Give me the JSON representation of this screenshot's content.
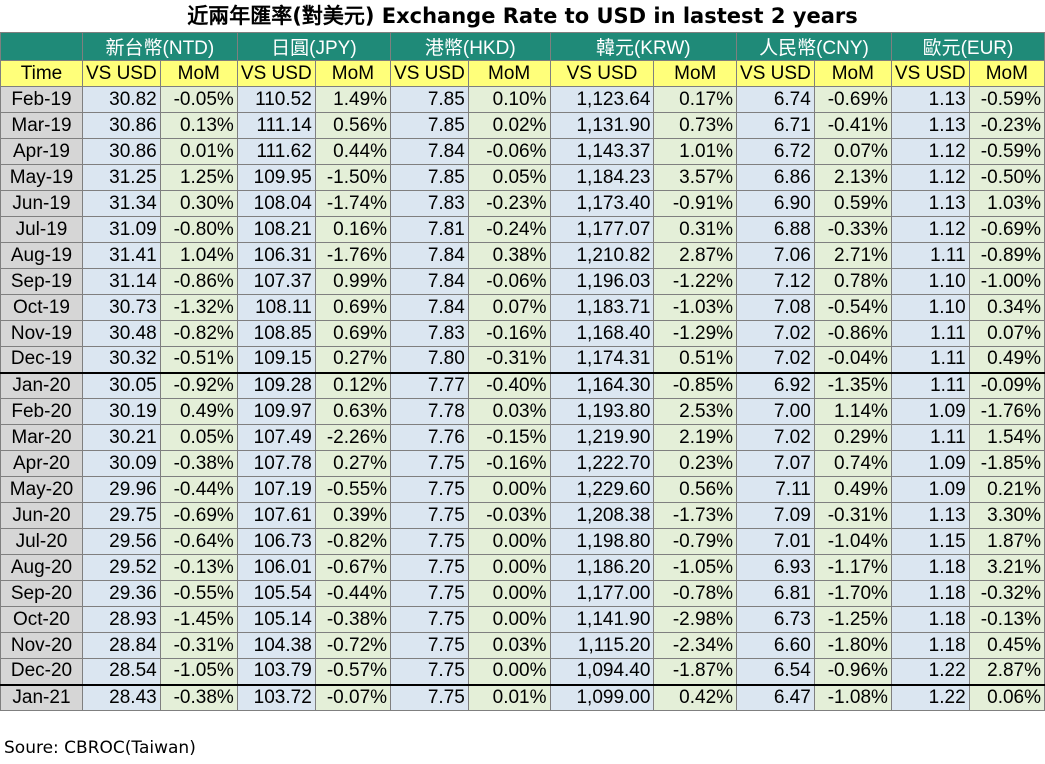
{
  "title": "近兩年匯率(對美元) Exchange Rate to USD in lastest 2 years",
  "source": "Soure: CBROC(Taiwan)",
  "currencies": [
    {
      "label": "新台幣(NTD)"
    },
    {
      "label": "日圓(JPY)"
    },
    {
      "label": "港幣(HKD)"
    },
    {
      "label": "韓元(KRW)"
    },
    {
      "label": "人民幣(CNY)"
    },
    {
      "label": "歐元(EUR)"
    }
  ],
  "subheaders": {
    "time": "Time",
    "vs": "VS USD",
    "mom": "MoM"
  },
  "colors": {
    "header_teal": "#1f8a78",
    "header_yellow": "#ffff7a",
    "month_gray": "#d6d6d6",
    "vs_blue": "#dbe6f1",
    "mom_green": "#e4efd8"
  },
  "rows": [
    {
      "month": "Feb-19",
      "v": [
        "30.82",
        "-0.05%",
        "110.52",
        "1.49%",
        "7.85",
        "0.10%",
        "1,123.64",
        "0.17%",
        "6.74",
        "-0.69%",
        "1.13",
        "-0.59%"
      ]
    },
    {
      "month": "Mar-19",
      "v": [
        "30.86",
        "0.13%",
        "111.14",
        "0.56%",
        "7.85",
        "0.02%",
        "1,131.90",
        "0.73%",
        "6.71",
        "-0.41%",
        "1.13",
        "-0.23%"
      ]
    },
    {
      "month": "Apr-19",
      "v": [
        "30.86",
        "0.01%",
        "111.62",
        "0.44%",
        "7.84",
        "-0.06%",
        "1,143.37",
        "1.01%",
        "6.72",
        "0.07%",
        "1.12",
        "-0.59%"
      ]
    },
    {
      "month": "May-19",
      "v": [
        "31.25",
        "1.25%",
        "109.95",
        "-1.50%",
        "7.85",
        "0.05%",
        "1,184.23",
        "3.57%",
        "6.86",
        "2.13%",
        "1.12",
        "-0.50%"
      ]
    },
    {
      "month": "Jun-19",
      "v": [
        "31.34",
        "0.30%",
        "108.04",
        "-1.74%",
        "7.83",
        "-0.23%",
        "1,173.40",
        "-0.91%",
        "6.90",
        "0.59%",
        "1.13",
        "1.03%"
      ]
    },
    {
      "month": "Jul-19",
      "v": [
        "31.09",
        "-0.80%",
        "108.21",
        "0.16%",
        "7.81",
        "-0.24%",
        "1,177.07",
        "0.31%",
        "6.88",
        "-0.33%",
        "1.12",
        "-0.69%"
      ]
    },
    {
      "month": "Aug-19",
      "v": [
        "31.41",
        "1.04%",
        "106.31",
        "-1.76%",
        "7.84",
        "0.38%",
        "1,210.82",
        "2.87%",
        "7.06",
        "2.71%",
        "1.11",
        "-0.89%"
      ]
    },
    {
      "month": "Sep-19",
      "v": [
        "31.14",
        "-0.86%",
        "107.37",
        "0.99%",
        "7.84",
        "-0.06%",
        "1,196.03",
        "-1.22%",
        "7.12",
        "0.78%",
        "1.10",
        "-1.00%"
      ]
    },
    {
      "month": "Oct-19",
      "v": [
        "30.73",
        "-1.32%",
        "108.11",
        "0.69%",
        "7.84",
        "0.07%",
        "1,183.71",
        "-1.03%",
        "7.08",
        "-0.54%",
        "1.10",
        "0.34%"
      ]
    },
    {
      "month": "Nov-19",
      "v": [
        "30.48",
        "-0.82%",
        "108.85",
        "0.69%",
        "7.83",
        "-0.16%",
        "1,168.40",
        "-1.29%",
        "7.02",
        "-0.86%",
        "1.11",
        "0.07%"
      ]
    },
    {
      "month": "Dec-19",
      "v": [
        "30.32",
        "-0.51%",
        "109.15",
        "0.27%",
        "7.80",
        "-0.31%",
        "1,174.31",
        "0.51%",
        "7.02",
        "-0.04%",
        "1.11",
        "0.49%"
      ]
    },
    {
      "month": "Jan-20",
      "v": [
        "30.05",
        "-0.92%",
        "109.28",
        "0.12%",
        "7.77",
        "-0.40%",
        "1,164.30",
        "-0.85%",
        "6.92",
        "-1.35%",
        "1.11",
        "-0.09%"
      ]
    },
    {
      "month": "Feb-20",
      "v": [
        "30.19",
        "0.49%",
        "109.97",
        "0.63%",
        "7.78",
        "0.03%",
        "1,193.80",
        "2.53%",
        "7.00",
        "1.14%",
        "1.09",
        "-1.76%"
      ]
    },
    {
      "month": "Mar-20",
      "v": [
        "30.21",
        "0.05%",
        "107.49",
        "-2.26%",
        "7.76",
        "-0.15%",
        "1,219.90",
        "2.19%",
        "7.02",
        "0.29%",
        "1.11",
        "1.54%"
      ]
    },
    {
      "month": "Apr-20",
      "v": [
        "30.09",
        "-0.38%",
        "107.78",
        "0.27%",
        "7.75",
        "-0.16%",
        "1,222.70",
        "0.23%",
        "7.07",
        "0.74%",
        "1.09",
        "-1.85%"
      ]
    },
    {
      "month": "May-20",
      "v": [
        "29.96",
        "-0.44%",
        "107.19",
        "-0.55%",
        "7.75",
        "0.00%",
        "1,229.60",
        "0.56%",
        "7.11",
        "0.49%",
        "1.09",
        "0.21%"
      ]
    },
    {
      "month": "Jun-20",
      "v": [
        "29.75",
        "-0.69%",
        "107.61",
        "0.39%",
        "7.75",
        "-0.03%",
        "1,208.38",
        "-1.73%",
        "7.09",
        "-0.31%",
        "1.13",
        "3.30%"
      ]
    },
    {
      "month": "Jul-20",
      "v": [
        "29.56",
        "-0.64%",
        "106.73",
        "-0.82%",
        "7.75",
        "0.00%",
        "1,198.80",
        "-0.79%",
        "7.01",
        "-1.04%",
        "1.15",
        "1.87%"
      ]
    },
    {
      "month": "Aug-20",
      "v": [
        "29.52",
        "-0.13%",
        "106.01",
        "-0.67%",
        "7.75",
        "0.00%",
        "1,186.20",
        "-1.05%",
        "6.93",
        "-1.17%",
        "1.18",
        "3.21%"
      ]
    },
    {
      "month": "Sep-20",
      "v": [
        "29.36",
        "-0.55%",
        "105.54",
        "-0.44%",
        "7.75",
        "0.00%",
        "1,177.00",
        "-0.78%",
        "6.81",
        "-1.70%",
        "1.18",
        "-0.32%"
      ]
    },
    {
      "month": "Oct-20",
      "v": [
        "28.93",
        "-1.45%",
        "105.14",
        "-0.38%",
        "7.75",
        "0.00%",
        "1,141.90",
        "-2.98%",
        "6.73",
        "-1.25%",
        "1.18",
        "-0.13%"
      ]
    },
    {
      "month": "Nov-20",
      "v": [
        "28.84",
        "-0.31%",
        "104.38",
        "-0.72%",
        "7.75",
        "0.03%",
        "1,115.20",
        "-2.34%",
        "6.60",
        "-1.80%",
        "1.18",
        "0.45%"
      ]
    },
    {
      "month": "Dec-20",
      "v": [
        "28.54",
        "-1.05%",
        "103.79",
        "-0.57%",
        "7.75",
        "0.00%",
        "1,094.40",
        "-1.87%",
        "6.54",
        "-0.96%",
        "1.22",
        "2.87%"
      ]
    },
    {
      "month": "Jan-21",
      "v": [
        "28.43",
        "-0.38%",
        "103.72",
        "-0.07%",
        "7.75",
        "0.01%",
        "1,099.00",
        "0.42%",
        "6.47",
        "-1.08%",
        "1.22",
        "0.06%"
      ]
    }
  ]
}
